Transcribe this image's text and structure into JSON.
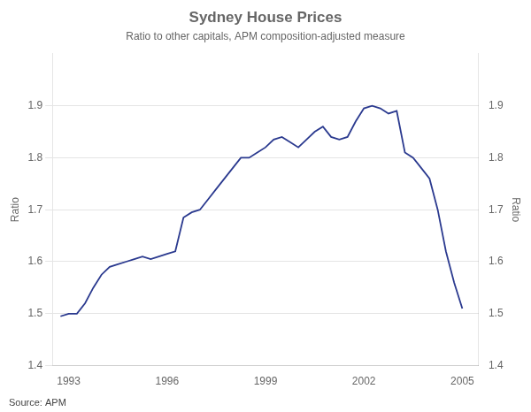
{
  "chart_data": {
    "type": "line",
    "title": "Sydney House Prices",
    "subtitle": "Ratio to other capitals, APM composition-adjusted measure",
    "y_label": "Ratio",
    "y2_label": "Ratio",
    "source": "Source: APM",
    "color": "#2b3a8f",
    "grid": true,
    "xlim": [
      1992.5,
      2005.5
    ],
    "xticks": [
      1993,
      1996,
      1999,
      2002,
      2005
    ],
    "ylim": [
      1.4,
      2.0
    ],
    "yticks": [
      1.4,
      1.5,
      1.6,
      1.7,
      1.8,
      1.9
    ],
    "y2lim": [
      1.4,
      2.0
    ],
    "y2ticks": [
      1.4,
      1.5,
      1.6,
      1.7,
      1.8,
      1.9
    ],
    "x": [
      1992.75,
      1993.0,
      1993.25,
      1993.5,
      1993.75,
      1994.0,
      1994.25,
      1994.5,
      1994.75,
      1995.0,
      1995.25,
      1995.5,
      1995.75,
      1996.0,
      1996.25,
      1996.5,
      1996.75,
      1997.0,
      1997.25,
      1997.5,
      1997.75,
      1998.0,
      1998.25,
      1998.5,
      1998.75,
      1999.0,
      1999.25,
      1999.5,
      1999.75,
      2000.0,
      2000.25,
      2000.5,
      2000.75,
      2001.0,
      2001.25,
      2001.5,
      2001.75,
      2002.0,
      2002.25,
      2002.5,
      2002.75,
      2003.0,
      2003.25,
      2003.5,
      2003.75,
      2004.0,
      2004.25,
      2004.5,
      2004.75,
      2005.0
    ],
    "values": [
      1.495,
      1.5,
      1.5,
      1.52,
      1.55,
      1.575,
      1.59,
      1.595,
      1.6,
      1.605,
      1.61,
      1.605,
      1.61,
      1.615,
      1.62,
      1.685,
      1.695,
      1.7,
      1.72,
      1.74,
      1.76,
      1.78,
      1.8,
      1.8,
      1.81,
      1.82,
      1.835,
      1.84,
      1.83,
      1.82,
      1.835,
      1.85,
      1.86,
      1.84,
      1.835,
      1.84,
      1.87,
      1.895,
      1.9,
      1.895,
      1.885,
      1.89,
      1.81,
      1.8,
      1.78,
      1.76,
      1.7,
      1.62,
      1.56,
      1.51
    ]
  }
}
